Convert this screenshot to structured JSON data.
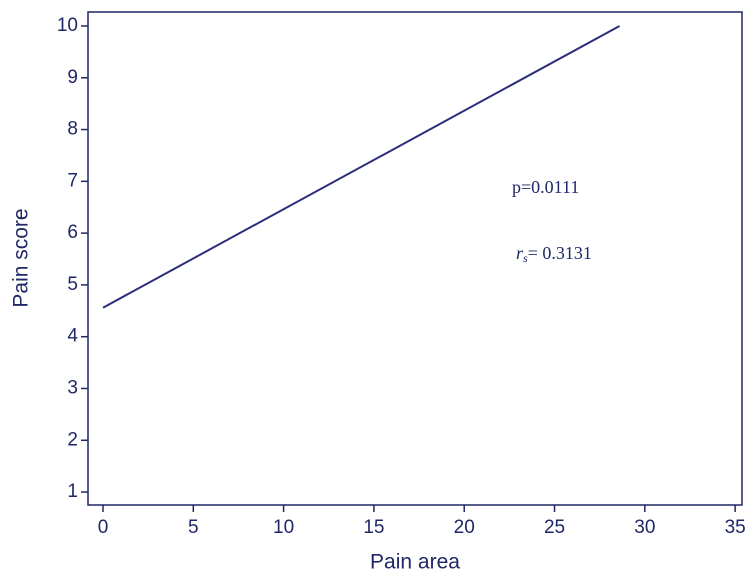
{
  "chart_data": {
    "type": "line",
    "x_label": "Pain area",
    "y_label": "Pain score",
    "x": [
      0,
      28.6
    ],
    "series": [
      {
        "name": null,
        "color": "#2b2f7a",
        "values": [
          4.56,
          10
        ]
      }
    ],
    "xlim": [
      -0.83,
      35.38
    ],
    "ylim": [
      0.75,
      10.27
    ],
    "xticks": [
      0,
      5,
      10,
      15,
      20,
      25,
      30,
      35
    ],
    "yticks": [
      1,
      2,
      3,
      4,
      5,
      6,
      7,
      8,
      9,
      10
    ],
    "grid": false,
    "annotations": [
      {
        "text": "p=0.0111"
      },
      {
        "symbol": "r",
        "subscript": "s",
        "text": "= 0.3131"
      }
    ]
  }
}
